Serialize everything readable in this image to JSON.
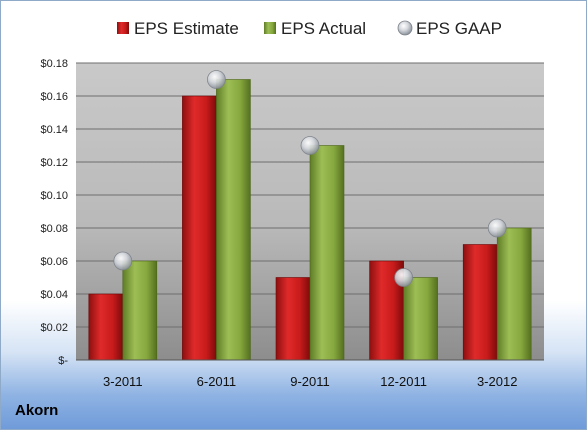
{
  "company": "Akorn",
  "colors": {
    "estimate": "#cc1f1f",
    "actual": "#8dae45",
    "gaap": "#b8bcc4"
  },
  "chart_data": {
    "type": "bar",
    "categories": [
      "3-2011",
      "6-2011",
      "9-2011",
      "12-2011",
      "3-2012"
    ],
    "series": [
      {
        "name": "EPS Estimate",
        "values": [
          0.04,
          0.16,
          0.05,
          0.06,
          0.07
        ]
      },
      {
        "name": "EPS Actual",
        "values": [
          0.06,
          0.17,
          0.13,
          0.05,
          0.08
        ]
      },
      {
        "name": "EPS GAAP",
        "values": [
          0.06,
          0.17,
          0.13,
          0.05,
          0.08
        ]
      }
    ],
    "yticks": [
      "$-",
      "$0.02",
      "$0.04",
      "$0.06",
      "$0.08",
      "$0.10",
      "$0.12",
      "$0.14",
      "$0.16",
      "$0.18"
    ],
    "ylim": [
      0,
      0.18
    ],
    "legend": "top",
    "grid": true
  }
}
